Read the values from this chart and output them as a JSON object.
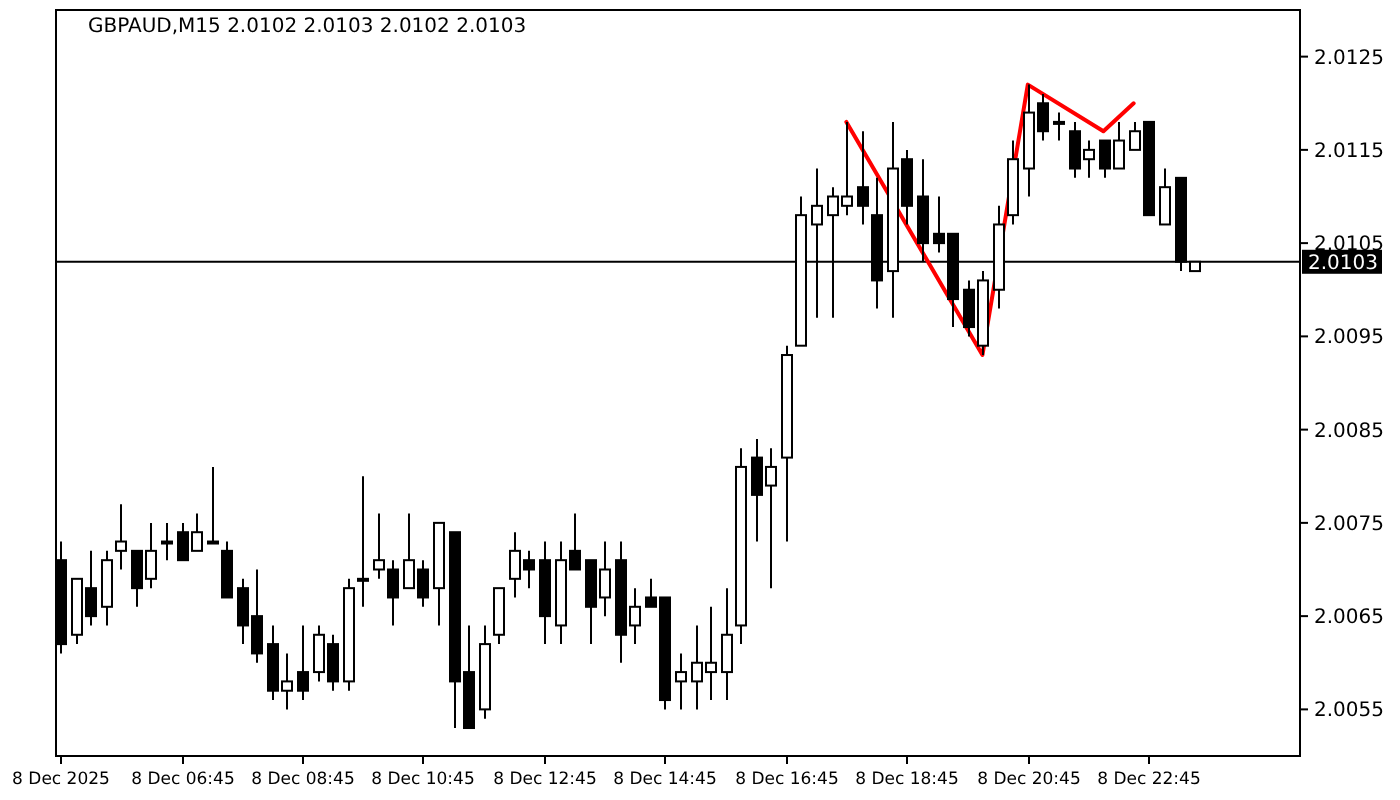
{
  "chart_data": {
    "type": "candlestick",
    "title": "GBPAUD,M15  2.0102 2.0103 2.0102 2.0103",
    "x": [
      "2025-12-08T04:45",
      "2025-12-08T05:00",
      "2025-12-08T05:15",
      "2025-12-08T05:30",
      "2025-12-08T05:45",
      "2025-12-08T06:00",
      "2025-12-08T06:15",
      "2025-12-08T06:30",
      "2025-12-08T06:45",
      "2025-12-08T07:00",
      "2025-12-08T07:15",
      "2025-12-08T07:30",
      "2025-12-08T07:45",
      "2025-12-08T08:00",
      "2025-12-08T08:15",
      "2025-12-08T08:30",
      "2025-12-08T08:45",
      "2025-12-08T09:00",
      "2025-12-08T09:15",
      "2025-12-08T09:30",
      "2025-12-08T09:45",
      "2025-12-08T10:00",
      "2025-12-08T10:15",
      "2025-12-08T10:30",
      "2025-12-08T10:45",
      "2025-12-08T11:00",
      "2025-12-08T11:15",
      "2025-12-08T11:30",
      "2025-12-08T11:45",
      "2025-12-08T12:00",
      "2025-12-08T12:15",
      "2025-12-08T12:30",
      "2025-12-08T12:45",
      "2025-12-08T13:00",
      "2025-12-08T13:15",
      "2025-12-08T13:30",
      "2025-12-08T13:45",
      "2025-12-08T14:00",
      "2025-12-08T14:15",
      "2025-12-08T14:30",
      "2025-12-08T14:45",
      "2025-12-08T15:00",
      "2025-12-08T15:15",
      "2025-12-08T15:30",
      "2025-12-08T15:45",
      "2025-12-08T16:00",
      "2025-12-08T16:15",
      "2025-12-08T16:30",
      "2025-12-08T16:45",
      "2025-12-08T17:00",
      "2025-12-08T17:15",
      "2025-12-08T17:30",
      "2025-12-08T17:45",
      "2025-12-08T18:00",
      "2025-12-08T18:15",
      "2025-12-08T18:30",
      "2025-12-08T18:45",
      "2025-12-08T19:00",
      "2025-12-08T19:15",
      "2025-12-08T19:30",
      "2025-12-08T19:45",
      "2025-12-08T20:00",
      "2025-12-08T20:15",
      "2025-12-08T20:30",
      "2025-12-08T20:45",
      "2025-12-08T21:00",
      "2025-12-08T21:15",
      "2025-12-08T21:30",
      "2025-12-08T21:45",
      "2025-12-08T22:00",
      "2025-12-08T22:15",
      "2025-12-08T22:30",
      "2025-12-08T22:45",
      "2025-12-08T23:00",
      "2025-12-08T23:15",
      "2025-12-08T23:30"
    ],
    "ohlc": [
      [
        2.0071,
        2.0073,
        2.0061,
        2.0062
      ],
      [
        2.0063,
        2.0069,
        2.0062,
        2.0069
      ],
      [
        2.0068,
        2.0072,
        2.0064,
        2.0065
      ],
      [
        2.0066,
        2.0072,
        2.0064,
        2.0071
      ],
      [
        2.0072,
        2.0077,
        2.007,
        2.0073
      ],
      [
        2.0072,
        2.0072,
        2.0066,
        2.0068
      ],
      [
        2.0069,
        2.0075,
        2.0068,
        2.0072
      ],
      [
        2.0073,
        2.0075,
        2.0071,
        2.0073
      ],
      [
        2.0074,
        2.0075,
        2.0071,
        2.0071
      ],
      [
        2.0072,
        2.0076,
        2.0072,
        2.0074
      ],
      [
        2.0073,
        2.0081,
        2.0073,
        2.0073
      ],
      [
        2.0072,
        2.0073,
        2.0067,
        2.0067
      ],
      [
        2.0068,
        2.0069,
        2.0062,
        2.0064
      ],
      [
        2.0065,
        2.007,
        2.006,
        2.0061
      ],
      [
        2.0062,
        2.0064,
        2.0056,
        2.0057
      ],
      [
        2.0057,
        2.0061,
        2.0055,
        2.0058
      ],
      [
        2.0059,
        2.0064,
        2.0056,
        2.0057
      ],
      [
        2.0059,
        2.0064,
        2.0058,
        2.0063
      ],
      [
        2.0062,
        2.0063,
        2.0057,
        2.0058
      ],
      [
        2.0058,
        2.0069,
        2.0057,
        2.0068
      ],
      [
        2.0069,
        2.008,
        2.0066,
        2.0069
      ],
      [
        2.007,
        2.0076,
        2.0069,
        2.0071
      ],
      [
        2.007,
        2.0071,
        2.0064,
        2.0067
      ],
      [
        2.0068,
        2.0076,
        2.0068,
        2.0071
      ],
      [
        2.007,
        2.0071,
        2.0066,
        2.0067
      ],
      [
        2.0068,
        2.0075,
        2.0064,
        2.0075
      ],
      [
        2.0074,
        2.0074,
        2.0053,
        2.0058
      ],
      [
        2.0059,
        2.0064,
        2.0053,
        2.0053
      ],
      [
        2.0055,
        2.0064,
        2.0054,
        2.0062
      ],
      [
        2.0063,
        2.0068,
        2.0062,
        2.0068
      ],
      [
        2.0069,
        2.0074,
        2.0067,
        2.0072
      ],
      [
        2.0071,
        2.0072,
        2.0068,
        2.007
      ],
      [
        2.0071,
        2.0073,
        2.0062,
        2.0065
      ],
      [
        2.0064,
        2.0073,
        2.0062,
        2.0071
      ],
      [
        2.0072,
        2.0076,
        2.007,
        2.007
      ],
      [
        2.0071,
        2.0071,
        2.0062,
        2.0066
      ],
      [
        2.0067,
        2.0073,
        2.0065,
        2.007
      ],
      [
        2.0071,
        2.0073,
        2.006,
        2.0063
      ],
      [
        2.0064,
        2.0068,
        2.0062,
        2.0066
      ],
      [
        2.0067,
        2.0069,
        2.0066,
        2.0066
      ],
      [
        2.0067,
        2.0067,
        2.0055,
        2.0056
      ],
      [
        2.0058,
        2.0061,
        2.0055,
        2.0059
      ],
      [
        2.0058,
        2.0064,
        2.0055,
        2.006
      ],
      [
        2.0059,
        2.0066,
        2.0056,
        2.006
      ],
      [
        2.0059,
        2.0068,
        2.0056,
        2.0063
      ],
      [
        2.0064,
        2.0083,
        2.0062,
        2.0081
      ],
      [
        2.0082,
        2.0084,
        2.0073,
        2.0078
      ],
      [
        2.0079,
        2.0083,
        2.0068,
        2.0081
      ],
      [
        2.0082,
        2.0094,
        2.0073,
        2.0093
      ],
      [
        2.0094,
        2.011,
        2.0094,
        2.0108
      ],
      [
        2.0107,
        2.0113,
        2.0097,
        2.0109
      ],
      [
        2.0108,
        2.0111,
        2.0097,
        2.011
      ],
      [
        2.0109,
        2.0118,
        2.0108,
        2.011
      ],
      [
        2.0111,
        2.0117,
        2.0107,
        2.0109
      ],
      [
        2.0108,
        2.0112,
        2.0098,
        2.0101
      ],
      [
        2.0102,
        2.0118,
        2.0097,
        2.0113
      ],
      [
        2.0114,
        2.0115,
        2.0107,
        2.0109
      ],
      [
        2.011,
        2.0114,
        2.0103,
        2.0105
      ],
      [
        2.0106,
        2.011,
        2.0104,
        2.0105
      ],
      [
        2.0106,
        2.0106,
        2.0096,
        2.0099
      ],
      [
        2.01,
        2.0101,
        2.0095,
        2.0096
      ],
      [
        2.0094,
        2.0102,
        2.0093,
        2.0101
      ],
      [
        2.01,
        2.0109,
        2.0098,
        2.0107
      ],
      [
        2.0108,
        2.0116,
        2.0107,
        2.0114
      ],
      [
        2.0113,
        2.0122,
        2.011,
        2.0119
      ],
      [
        2.012,
        2.0121,
        2.0116,
        2.0117
      ],
      [
        2.0118,
        2.0119,
        2.0116,
        2.0118
      ],
      [
        2.0117,
        2.0118,
        2.0112,
        2.0113
      ],
      [
        2.0114,
        2.0116,
        2.0112,
        2.0115
      ],
      [
        2.0116,
        2.0116,
        2.0112,
        2.0113
      ],
      [
        2.0113,
        2.0118,
        2.0113,
        2.0116
      ],
      [
        2.0115,
        2.0118,
        2.0115,
        2.0117
      ],
      [
        2.0118,
        2.0118,
        2.0108,
        2.0108
      ],
      [
        2.0107,
        2.0113,
        2.0107,
        2.0111
      ],
      [
        2.0112,
        2.0112,
        2.0102,
        2.0103
      ],
      [
        2.0102,
        2.0103,
        2.0102,
        2.0103
      ]
    ],
    "series": [
      {
        "type": "line",
        "color": "#ff0000",
        "x": [
          "2025-12-08T17:45",
          "2025-12-08T20:00",
          "2025-12-08T20:45",
          "2025-12-08T22:00",
          "2025-12-08T22:30"
        ],
        "values": [
          2.0118,
          2.0093,
          2.0122,
          2.0117,
          2.012
        ]
      }
    ],
    "xlim": [
      "2025-12-08T04:41",
      "2025-12-09T01:15"
    ],
    "xticks": [
      {
        "value": "2025-12-08T04:45",
        "label": "8 Dec 2025"
      },
      {
        "value": "2025-12-08T06:45",
        "label": "8 Dec 06:45"
      },
      {
        "value": "2025-12-08T08:45",
        "label": "8 Dec 08:45"
      },
      {
        "value": "2025-12-08T10:45",
        "label": "8 Dec 10:45"
      },
      {
        "value": "2025-12-08T12:45",
        "label": "8 Dec 12:45"
      },
      {
        "value": "2025-12-08T14:45",
        "label": "8 Dec 14:45"
      },
      {
        "value": "2025-12-08T16:45",
        "label": "8 Dec 16:45"
      },
      {
        "value": "2025-12-08T18:45",
        "label": "8 Dec 18:45"
      },
      {
        "value": "2025-12-08T20:45",
        "label": "8 Dec 20:45"
      },
      {
        "value": "2025-12-08T22:45",
        "label": "8 Dec 22:45"
      }
    ],
    "ylim": [
      2.005,
      2.013
    ],
    "yticks": [
      2.0055,
      2.0065,
      2.0075,
      2.0085,
      2.0095,
      2.0105,
      2.0115,
      2.0125
    ],
    "ref_lines": [
      {
        "axis": "y",
        "value": 2.0103,
        "label": "2.0103",
        "color": "#000000"
      }
    ],
    "grid": false
  }
}
